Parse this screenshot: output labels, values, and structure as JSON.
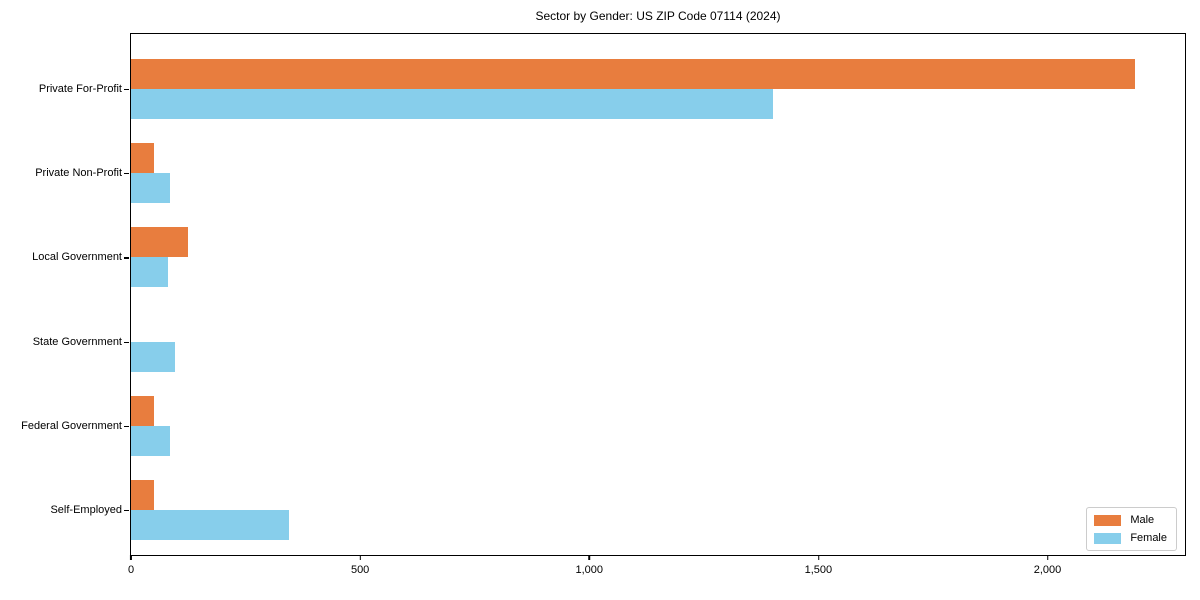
{
  "chart_data": {
    "type": "bar",
    "orientation": "horizontal",
    "title": "Sector by Gender: US ZIP Code 07114 (2024)",
    "categories": [
      "Private For-Profit",
      "Private Non-Profit",
      "Local Government",
      "State Government",
      "Federal Government",
      "Self-Employed"
    ],
    "series": [
      {
        "name": "Male",
        "color": "#E87D3E",
        "values": [
          2190,
          50,
          125,
          0,
          50,
          50
        ]
      },
      {
        "name": "Female",
        "color": "#87CEEB",
        "values": [
          1400,
          85,
          80,
          95,
          85,
          345
        ]
      }
    ],
    "xlabel": "",
    "ylabel": "",
    "xlim": [
      0,
      2300
    ],
    "xticks": [
      0,
      500,
      1000,
      1500,
      2000
    ],
    "xtick_labels": [
      "0",
      "500",
      "1,000",
      "1,500",
      "2,000"
    ],
    "grid": false,
    "legend_position": "lower right",
    "axis_color": "#000000",
    "background_color": "#ffffff"
  }
}
